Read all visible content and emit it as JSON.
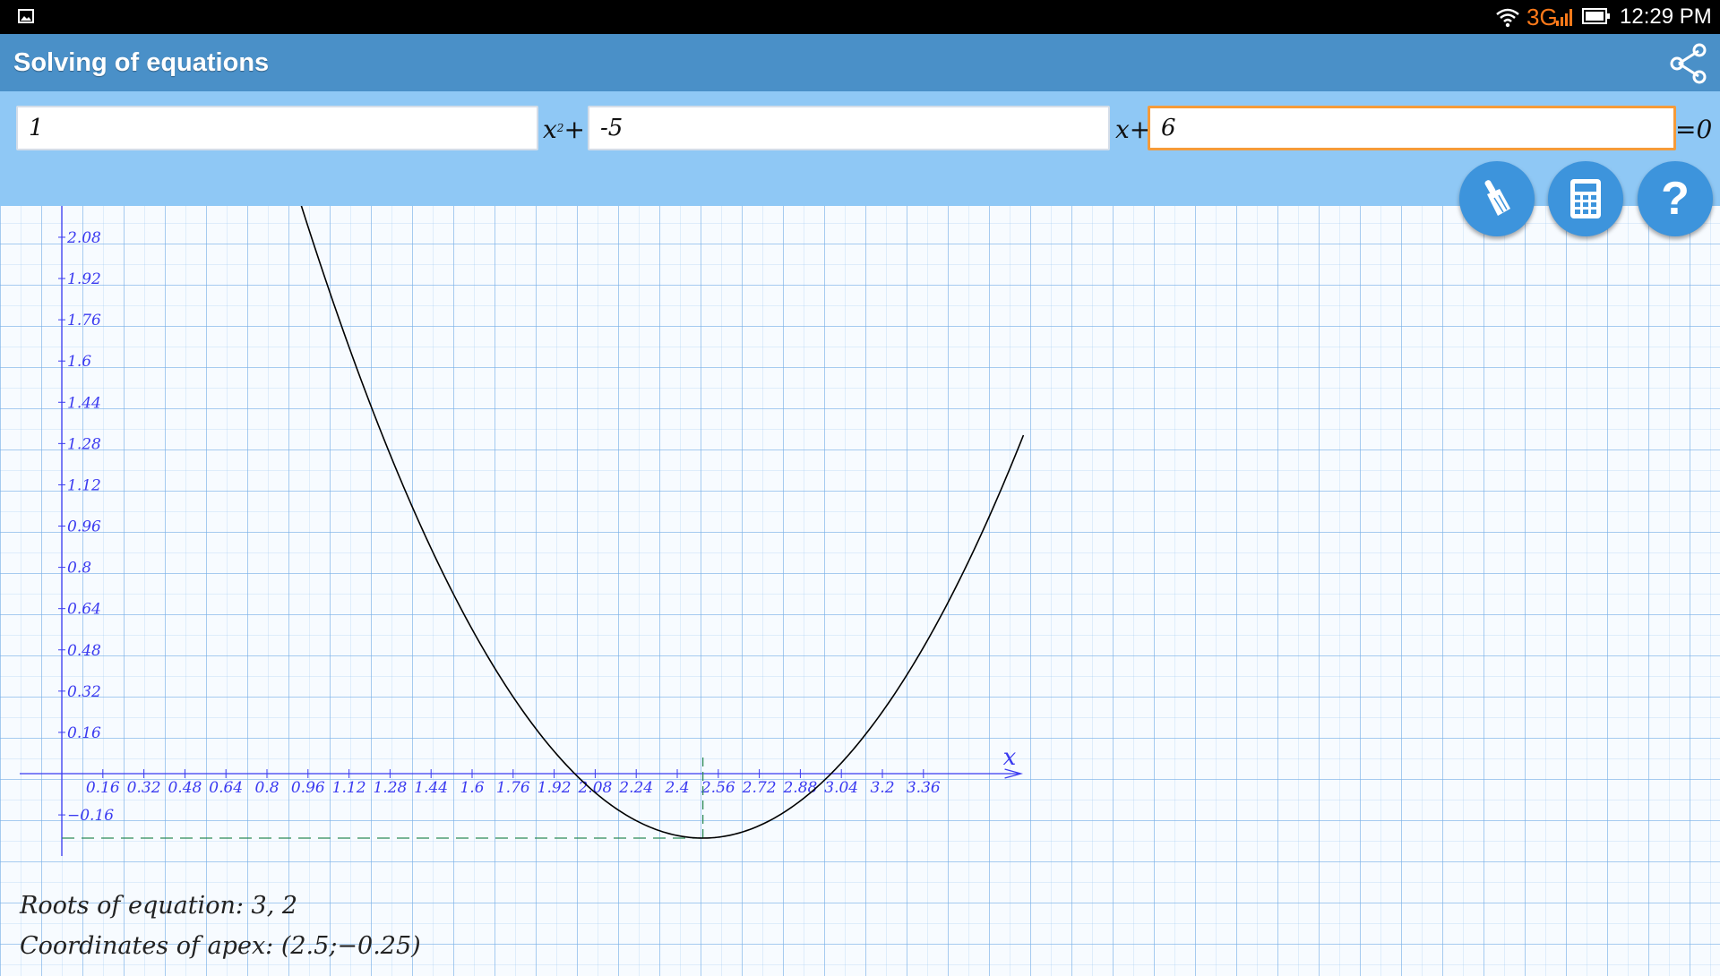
{
  "status_bar": {
    "network": "3G",
    "time": "12:29 PM",
    "icons": [
      "gallery-icon",
      "wifi-icon",
      "signal-icon",
      "battery-icon"
    ]
  },
  "app_bar": {
    "title": "Solving of equations",
    "share_icon": "share-icon"
  },
  "equation": {
    "a": "1",
    "b": "-5",
    "c": "6",
    "x2_label": "x",
    "x2_exponent": "2",
    "plus": "+",
    "x_label": "x+",
    "equals_label": "=0"
  },
  "actions": {
    "clear_icon": "broom-icon",
    "calculator_icon": "calculator-icon",
    "help_label": "?"
  },
  "chart_data": {
    "type": "line",
    "function": "y = x^2 - 5x + 6",
    "xlabel": "x",
    "ylabel": "",
    "xlim": [
      -0.19,
      3.74
    ],
    "ylim": [
      -0.33,
      2.19
    ],
    "x_ticks": [
      "0.16",
      "0.32",
      "0.48",
      "0.64",
      "0.8",
      "0.96",
      "1.12",
      "1.28",
      "1.44",
      "1.6",
      "1.76",
      "1.92",
      "2.08",
      "2.24",
      "2.4",
      "2.56",
      "2.72",
      "2.88",
      "3.04",
      "3.2",
      "3.36"
    ],
    "y_ticks": [
      "2.08",
      "1.92",
      "1.76",
      "1.6",
      "1.44",
      "1.28",
      "1.12",
      "0.96",
      "0.8",
      "0.64",
      "0.48",
      "0.32",
      "0.16",
      "−0.16"
    ],
    "series": [
      {
        "x": [
          0.86,
          1.0,
          1.2,
          1.4,
          1.6,
          1.8,
          2.0,
          2.2,
          2.4,
          2.5,
          2.6,
          2.8,
          3.0,
          3.2,
          3.4,
          3.6,
          3.75
        ],
        "y": [
          2.4196,
          2.0,
          1.44,
          0.96,
          0.56,
          0.24,
          0.0,
          -0.16,
          -0.24,
          -0.25,
          -0.24,
          -0.16,
          0.0,
          0.24,
          0.56,
          0.96,
          1.3125
        ]
      }
    ],
    "apex": {
      "x": 2.5,
      "y": -0.25
    },
    "grid": true,
    "colors": {
      "curve": "#000000",
      "axis": "#3a3af0",
      "apex_guide": "#2e8b57"
    }
  },
  "results": {
    "roots": "Roots of equation: 3, 2",
    "apex": "Coordinates of apex: (2.5;−0.25)"
  }
}
